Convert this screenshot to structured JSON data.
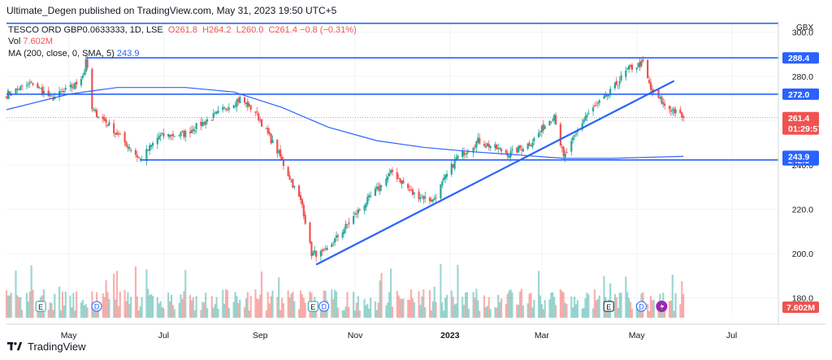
{
  "header": {
    "publisher": "Ultimate_Degen published on TradingView.com, May 31, 2023 19:50 UTC+5",
    "symbol": "TESCO ORD GBP0.0633333, 1D, LSE",
    "ohlc": {
      "O": "261.8",
      "H": "264.2",
      "L": "260.0",
      "C": "261.4",
      "change": "−0.8 (−0.31%)"
    },
    "vol_label": "Vol",
    "vol_value": "7.602M",
    "ma_label": "MA (200, close, 0, SMA, 5)",
    "ma_value": "243.9"
  },
  "footer": {
    "brand": "TradingView"
  },
  "colors": {
    "up": "#26a69a",
    "down": "#ef5350",
    "blue": "#2962ff",
    "ma": "#2962ff",
    "grid": "#f0f3fa"
  },
  "chart_data": {
    "type": "candlestick",
    "currency": "GBX",
    "ylim": [
      171,
      305
    ],
    "y_ticks": [
      180.0,
      200.0,
      220.0,
      240.0,
      260.0,
      280.0,
      300.0
    ],
    "x_ticks": [
      "May",
      "Jul",
      "Sep",
      "Nov",
      "2023",
      "Mar",
      "May",
      "Jul"
    ],
    "x_tick_dates": [
      "2022-05-01",
      "2022-07-01",
      "2022-09-01",
      "2022-11-01",
      "2023-01-01",
      "2023-03-01",
      "2023-05-01",
      "2023-07-01"
    ],
    "x_range": [
      "2022-03-22",
      "2023-07-31"
    ],
    "last_price": 261.4,
    "countdown": "01:29:57",
    "volume_label": "7.602M",
    "horizontal_levels": [
      {
        "value": 304.0,
        "from": "2022-03-22"
      },
      {
        "value": 288.4,
        "from": "2022-05-12",
        "label": "288.4"
      },
      {
        "value": 272.0,
        "from": "2022-03-22",
        "label": "272.0"
      },
      {
        "value": 242.3,
        "from": "2022-06-16",
        "label": "242.3"
      }
    ],
    "ma_label": "243.9",
    "trendline": {
      "from": [
        "2022-10-07",
        195.0
      ],
      "to": [
        "2023-05-25",
        278.0
      ]
    },
    "price_path": [
      [
        "2022-03-22",
        272
      ],
      [
        "2022-04-08",
        277
      ],
      [
        "2022-04-20",
        270
      ],
      [
        "2022-05-05",
        276
      ],
      [
        "2022-05-11",
        282
      ],
      [
        "2022-05-12",
        288.4
      ],
      [
        "2022-05-16",
        265
      ],
      [
        "2022-05-27",
        258
      ],
      [
        "2022-06-16",
        242.5
      ],
      [
        "2022-06-28",
        253
      ],
      [
        "2022-07-14",
        254
      ],
      [
        "2022-08-02",
        262
      ],
      [
        "2022-08-19",
        270
      ],
      [
        "2022-08-29",
        264
      ],
      [
        "2022-09-13",
        245
      ],
      [
        "2022-09-28",
        222
      ],
      [
        "2022-10-04",
        200
      ],
      [
        "2022-10-12",
        200
      ],
      [
        "2022-11-04",
        220
      ],
      [
        "2022-11-25",
        237
      ],
      [
        "2022-12-08",
        227
      ],
      [
        "2022-12-21",
        224
      ],
      [
        "2023-01-05",
        243
      ],
      [
        "2023-01-19",
        251
      ],
      [
        "2023-02-08",
        245
      ],
      [
        "2023-02-22",
        250
      ],
      [
        "2023-03-09",
        263
      ],
      [
        "2023-03-15",
        243
      ],
      [
        "2023-03-29",
        262
      ],
      [
        "2023-04-13",
        272
      ],
      [
        "2023-04-25",
        283
      ],
      [
        "2023-05-05",
        286
      ],
      [
        "2023-05-10",
        274
      ],
      [
        "2023-05-19",
        267
      ],
      [
        "2023-05-31",
        261.4
      ]
    ],
    "ma_path": [
      [
        "2022-03-22",
        265
      ],
      [
        "2022-05-01",
        272
      ],
      [
        "2022-06-01",
        275
      ],
      [
        "2022-07-15",
        275
      ],
      [
        "2022-08-15",
        273
      ],
      [
        "2022-09-15",
        266
      ],
      [
        "2022-10-15",
        257
      ],
      [
        "2022-11-15",
        251
      ],
      [
        "2022-12-15",
        248
      ],
      [
        "2023-01-15",
        246
      ],
      [
        "2023-02-15",
        244.5
      ],
      [
        "2023-03-15",
        243
      ],
      [
        "2023-04-15",
        243
      ],
      [
        "2023-05-15",
        243.6
      ],
      [
        "2023-05-31",
        243.9
      ]
    ],
    "event_markers": [
      {
        "type": "E",
        "date": "2022-04-13"
      },
      {
        "type": "D",
        "date": "2022-05-19"
      },
      {
        "type": "E",
        "date": "2022-10-05"
      },
      {
        "type": "D",
        "date": "2022-10-12"
      },
      {
        "type": "E",
        "date": "2023-04-13"
      },
      {
        "type": "D",
        "date": "2023-05-04"
      },
      {
        "type": "split",
        "date": "2023-05-17"
      }
    ]
  }
}
